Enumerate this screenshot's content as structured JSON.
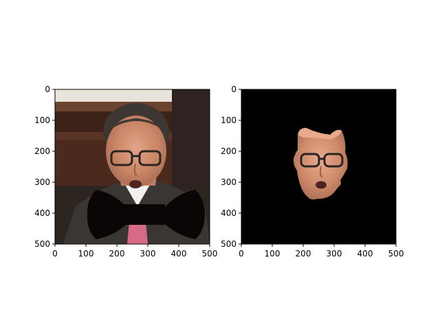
{
  "chart_data": [
    {
      "type": "image",
      "title": "",
      "xlabel": "",
      "ylabel": "",
      "xlim": [
        0,
        500
      ],
      "ylim": [
        500,
        0
      ],
      "y_inverted": true,
      "xticks": [
        0,
        100,
        200,
        300,
        400,
        500
      ],
      "yticks": [
        0,
        100,
        200,
        300,
        400,
        500
      ],
      "content": "photo of a man in a suit with a black bow-tie shape drawn over the chest",
      "overlay_shape": "bow-tie",
      "overlay_color": "#0b0605"
    },
    {
      "type": "image",
      "title": "",
      "xlabel": "",
      "ylabel": "",
      "xlim": [
        0,
        500
      ],
      "ylim": [
        500,
        0
      ],
      "y_inverted": true,
      "xticks": [
        0,
        100,
        200,
        300,
        400,
        500
      ],
      "yticks": [
        0,
        100,
        200,
        300,
        400,
        500
      ],
      "content": "segmented face on black background",
      "background_color": "#000000"
    }
  ]
}
